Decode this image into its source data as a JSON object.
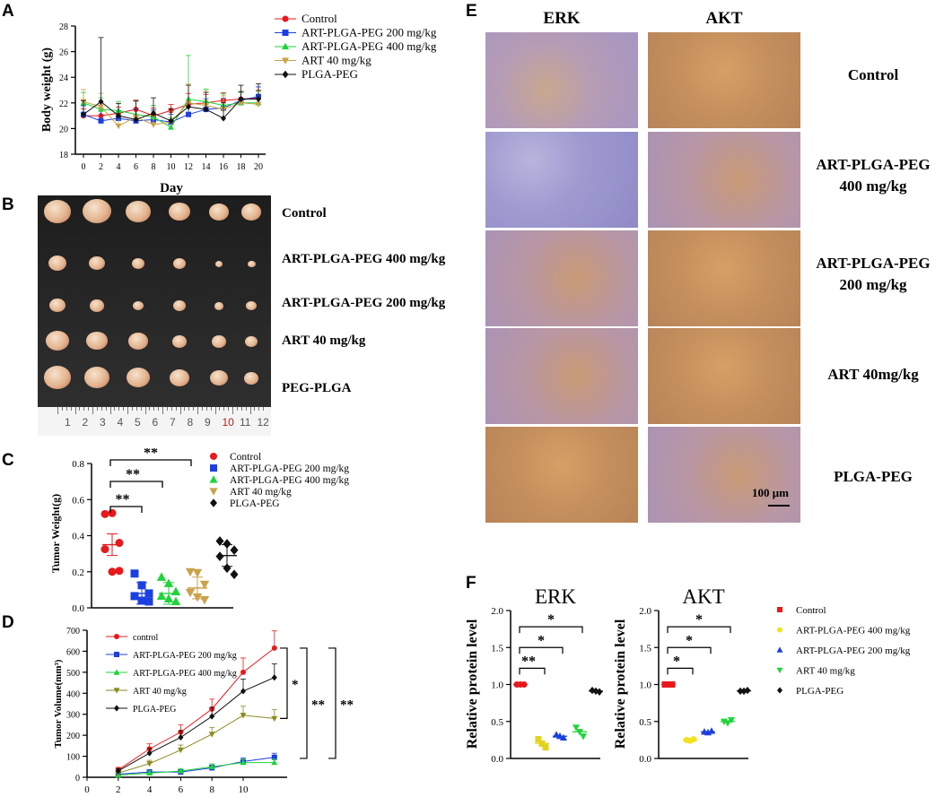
{
  "chart_data": [
    {
      "panel": "A",
      "type": "line",
      "ylabel": "Body weight (g)",
      "xlabel": "Day",
      "ylim": [
        18,
        28
      ],
      "yticks": [
        18,
        20,
        22,
        24,
        26,
        28
      ],
      "xticks": [
        0,
        2,
        4,
        6,
        8,
        10,
        12,
        14,
        16,
        18,
        20
      ],
      "x": [
        0,
        2,
        4,
        6,
        8,
        10,
        12,
        14,
        16,
        18,
        20
      ],
      "series": [
        {
          "name": "Control",
          "color": "#e8191c",
          "marker": "circle",
          "values": [
            21.0,
            21.0,
            21.2,
            21.5,
            21.0,
            21.4,
            21.9,
            22.0,
            22.2,
            22.3,
            22.4
          ]
        },
        {
          "name": "ART-PLGA-PEG 200 mg/kg",
          "color": "#1b3fe0",
          "marker": "square",
          "values": [
            21.1,
            20.6,
            20.8,
            20.6,
            20.7,
            20.5,
            21.1,
            21.5,
            21.6,
            22.2,
            22.5
          ]
        },
        {
          "name": "ART-PLGA-PEG 400 mg/kg",
          "color": "#1fd43a",
          "marker": "triangle-up",
          "values": [
            22.0,
            21.5,
            21.4,
            21.1,
            20.9,
            20.1,
            22.3,
            22.1,
            21.8,
            22.0,
            22.0
          ]
        },
        {
          "name": "ART 40 mg/kg",
          "color": "#c9a24a",
          "marker": "triangle-down",
          "values": [
            22.1,
            21.7,
            20.2,
            20.9,
            20.3,
            20.5,
            22.0,
            21.8,
            21.5,
            22.0,
            21.9
          ]
        },
        {
          "name": "PLGA-PEG",
          "color": "#111111",
          "marker": "diamond",
          "values": [
            21.1,
            22.1,
            21.0,
            20.7,
            21.2,
            20.6,
            21.7,
            21.5,
            20.8,
            22.3,
            22.3
          ]
        }
      ]
    },
    {
      "panel": "C",
      "type": "scatter",
      "ylabel": "Tumor Weight(g)",
      "ylim": [
        0.0,
        0.8
      ],
      "yticks": [
        "0.0",
        "0.2",
        "0.4",
        "0.6",
        "0.8"
      ],
      "series": [
        {
          "name": "Control",
          "color": "#e8191c",
          "marker": "circle",
          "values": [
            0.52,
            0.52,
            0.36,
            0.32,
            0.2,
            0.2
          ],
          "mean": 0.35
        },
        {
          "name": "ART-PLGA-PEG 200 mg/kg",
          "color": "#1b3fe0",
          "marker": "square",
          "values": [
            0.19,
            0.12,
            0.08,
            0.06,
            0.04,
            0.03
          ],
          "mean": 0.08
        },
        {
          "name": "ART-PLGA-PEG 400 mg/kg",
          "color": "#1fd43a",
          "marker": "triangle-up",
          "values": [
            0.17,
            0.13,
            0.09,
            0.06,
            0.05,
            0.03
          ],
          "mean": 0.08
        },
        {
          "name": "ART 40 mg/kg",
          "color": "#c9a24a",
          "marker": "triangle-down",
          "values": [
            0.2,
            0.19,
            0.13,
            0.08,
            0.06,
            0.04
          ],
          "mean": 0.11
        },
        {
          "name": "PLGA-PEG",
          "color": "#111111",
          "marker": "diamond",
          "values": [
            0.37,
            0.35,
            0.32,
            0.28,
            0.22,
            0.18
          ],
          "mean": 0.29
        }
      ],
      "significance": [
        {
          "label": "**",
          "from": 0,
          "to": 1
        },
        {
          "label": "**",
          "from": 0,
          "to": 2
        },
        {
          "label": "**",
          "from": 0,
          "to": 3
        }
      ]
    },
    {
      "panel": "D",
      "type": "line",
      "ylabel": "Tumor Volume(mm³)",
      "ylim": [
        0,
        700
      ],
      "yticks": [
        0,
        100,
        200,
        300,
        400,
        500,
        600,
        700
      ],
      "xticks": [
        0,
        2,
        4,
        6,
        8,
        10
      ],
      "x": [
        2,
        4,
        6,
        8,
        10,
        12
      ],
      "series": [
        {
          "name": "control",
          "color": "#e8191c",
          "marker": "circle",
          "values": [
            35,
            135,
            215,
            325,
            500,
            615
          ]
        },
        {
          "name": "ART-PLGA-PEG 200 mg/kg",
          "color": "#1b3fe0",
          "marker": "square",
          "values": [
            15,
            25,
            25,
            45,
            75,
            95
          ]
        },
        {
          "name": "ART-PLGA-PEG 400 mg/kg",
          "color": "#1fd43a",
          "marker": "triangle-up",
          "values": [
            10,
            20,
            30,
            50,
            70,
            70
          ]
        },
        {
          "name": "ART 40 mg/kg",
          "color": "#8a8a20",
          "marker": "triangle-down",
          "values": [
            20,
            65,
            130,
            205,
            295,
            280
          ]
        },
        {
          "name": "PLGA-PEG",
          "color": "#111111",
          "marker": "diamond",
          "values": [
            30,
            115,
            190,
            290,
            410,
            475
          ]
        }
      ],
      "significance": [
        "*",
        "**",
        "**"
      ]
    },
    {
      "panel": "F",
      "type": "scatter",
      "title": "ERK",
      "ylabel": "Relative protein level",
      "ylim": [
        0.0,
        2.0
      ],
      "yticks": [
        "0.0",
        "0.5",
        "1.0",
        "1.5",
        "2.0"
      ],
      "series": [
        {
          "name": "Control",
          "color": "#e8191c",
          "marker": "circle",
          "values": [
            1.0,
            1.0,
            1.0
          ]
        },
        {
          "name": "ART-PLGA-PEG 400 mg/kg",
          "color": "#e3d21b",
          "marker": "square",
          "values": [
            0.26,
            0.2,
            0.15
          ]
        },
        {
          "name": "ART-PLGA-PEG 200 mg/kg",
          "color": "#1b3fe0",
          "marker": "triangle-up",
          "values": [
            0.32,
            0.3,
            0.28
          ]
        },
        {
          "name": "ART 40 mg/kg",
          "color": "#1fd43a",
          "marker": "triangle-down",
          "values": [
            0.42,
            0.36,
            0.3
          ]
        },
        {
          "name": "PLGA-PEG",
          "color": "#111111",
          "marker": "diamond",
          "values": [
            0.92,
            0.91,
            0.9
          ]
        }
      ],
      "significance": [
        "**",
        "*",
        "*"
      ]
    },
    {
      "panel": "F",
      "type": "scatter",
      "title": "AKT",
      "ylabel": "Relative protein level",
      "ylim": [
        0.0,
        2.0
      ],
      "yticks": [
        "0.0",
        "0.5",
        "1.0",
        "1.5",
        "2.0"
      ],
      "series": [
        {
          "name": "Control",
          "color": "#e8191c",
          "marker": "square",
          "values": [
            1.0,
            1.0,
            1.0
          ]
        },
        {
          "name": "ART-PLGA-PEG 400 mg/kg",
          "color": "#f2e21d",
          "marker": "circle",
          "values": [
            0.25,
            0.24,
            0.26
          ]
        },
        {
          "name": "ART-PLGA-PEG 200 mg/kg",
          "color": "#1b3fe0",
          "marker": "triangle-up",
          "values": [
            0.36,
            0.35,
            0.37
          ]
        },
        {
          "name": "ART 40 mg/kg",
          "color": "#1fd43a",
          "marker": "triangle-down",
          "values": [
            0.5,
            0.48,
            0.52
          ]
        },
        {
          "name": "PLGA-PEG",
          "color": "#111111",
          "marker": "diamond",
          "values": [
            0.91,
            0.91,
            0.92
          ]
        }
      ],
      "significance": [
        "*",
        "*",
        "*"
      ]
    }
  ],
  "panels": {
    "A": "A",
    "B": "B",
    "C": "C",
    "D": "D",
    "E": "E",
    "F": "F"
  },
  "panelB": {
    "rows": [
      "Control",
      "ART-PLGA-PEG 400 mg/kg",
      "ART-PLGA-PEG 200 mg/kg",
      "ART 40 mg/kg",
      "PEG-PLGA"
    ],
    "ruler": [
      "1",
      "2",
      "3",
      "4",
      "5",
      "6",
      "7",
      "8",
      "9",
      "10",
      "11",
      "12"
    ]
  },
  "panelE": {
    "columns": [
      "ERK",
      "AKT"
    ],
    "rows": [
      "Control",
      "ART-PLGA-PEG\n400 mg/kg",
      "ART-PLGA-PEG\n200 mg/kg",
      "ART 40mg/kg",
      "PLGA-PEG"
    ],
    "scale_bar": "100 μm"
  }
}
